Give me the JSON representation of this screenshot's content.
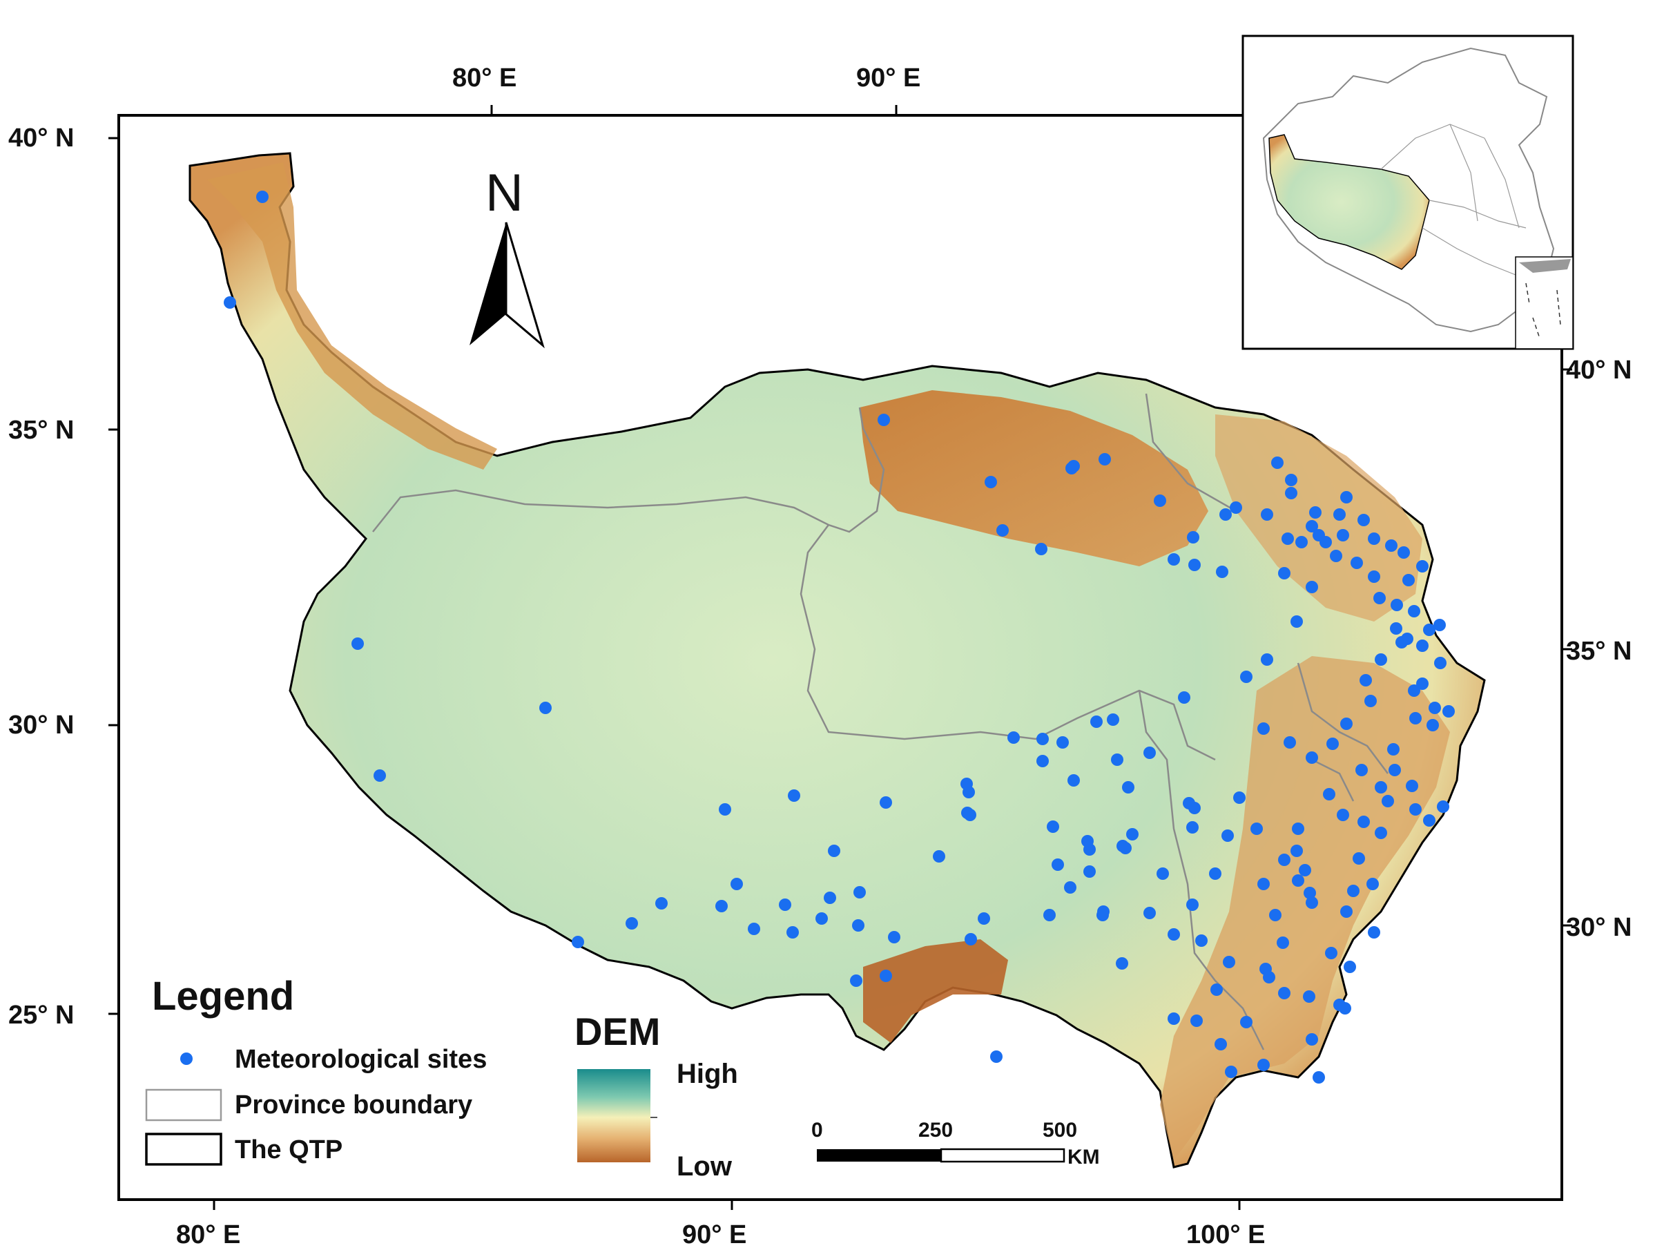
{
  "axes": {
    "bottom_ticks": [
      "80° E",
      "90° E",
      "100° E"
    ],
    "top_ticks": [
      "80° E",
      "90° E"
    ],
    "left_ticks": [
      "40° N",
      "35° N",
      "30° N",
      "25° N"
    ],
    "right_ticks": [
      "40° N",
      "35° N",
      "30° N"
    ]
  },
  "north_arrow": {
    "label": "N",
    "icon": "north-arrow-icon"
  },
  "legend": {
    "title": "Legend",
    "items": [
      {
        "label": "Meteorological sites",
        "icon": "site-dot-icon",
        "color": "#1a6ef0"
      },
      {
        "label": "Province boundary",
        "icon": "province-box-icon",
        "color": "#9a9a9a"
      },
      {
        "label": "The QTP",
        "icon": "qtp-box-icon",
        "color": "#000000"
      }
    ]
  },
  "dem": {
    "title": "DEM",
    "high_label": "High",
    "low_label": "Low",
    "colors": [
      "#1a8c8c",
      "#7ec9b0",
      "#f5f0b8",
      "#e5b070",
      "#b8652a"
    ]
  },
  "scale_bar": {
    "labels": [
      "0",
      "250",
      "500"
    ],
    "unit": "KM"
  },
  "colors": {
    "site": "#1a6ef0",
    "low_elev": "#c07a3a",
    "mid_elev": "#eee8b0",
    "high_elev": "#4fb0a6",
    "province_line": "#8a8a8a"
  },
  "sites_count_note": null
}
